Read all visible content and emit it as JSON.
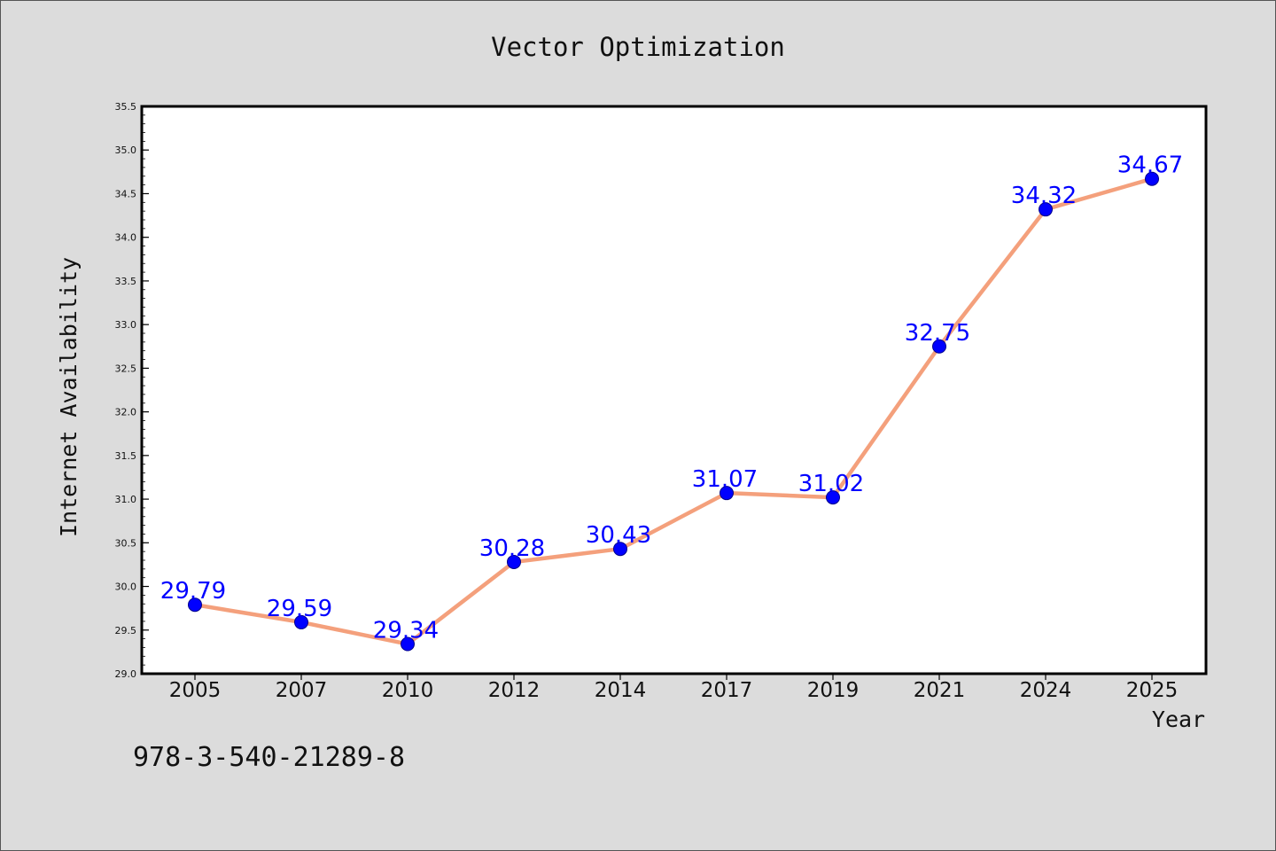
{
  "chart_data": {
    "type": "line",
    "title": "Vector Optimization",
    "xlabel": "Year",
    "ylabel": "Internet Availability",
    "categories": [
      "2005",
      "2007",
      "2010",
      "2012",
      "2014",
      "2017",
      "2019",
      "2021",
      "2024",
      "2025"
    ],
    "series": [
      {
        "values": [
          29.79,
          29.59,
          29.34,
          30.28,
          30.43,
          31.07,
          31.02,
          32.75,
          34.32,
          34.67
        ],
        "line_color": "#f4a07c",
        "marker_color": "#0000ff"
      }
    ],
    "data_labels": [
      "29.79",
      "29.59",
      "29.34",
      "30.28",
      "30.43",
      "31.07",
      "31.02",
      "32.75",
      "34.32",
      "34.67"
    ],
    "ylim": [
      29.0,
      35.5
    ],
    "yticks": [
      "29.0",
      "29.5",
      "30.0",
      "30.5",
      "31.0",
      "31.5",
      "32.0",
      "32.5",
      "33.0",
      "33.5",
      "34.0",
      "34.5",
      "35.0",
      "35.5"
    ],
    "grid": false,
    "legend": "none"
  },
  "footer": {
    "isbn": "978-3-540-21289-8"
  }
}
